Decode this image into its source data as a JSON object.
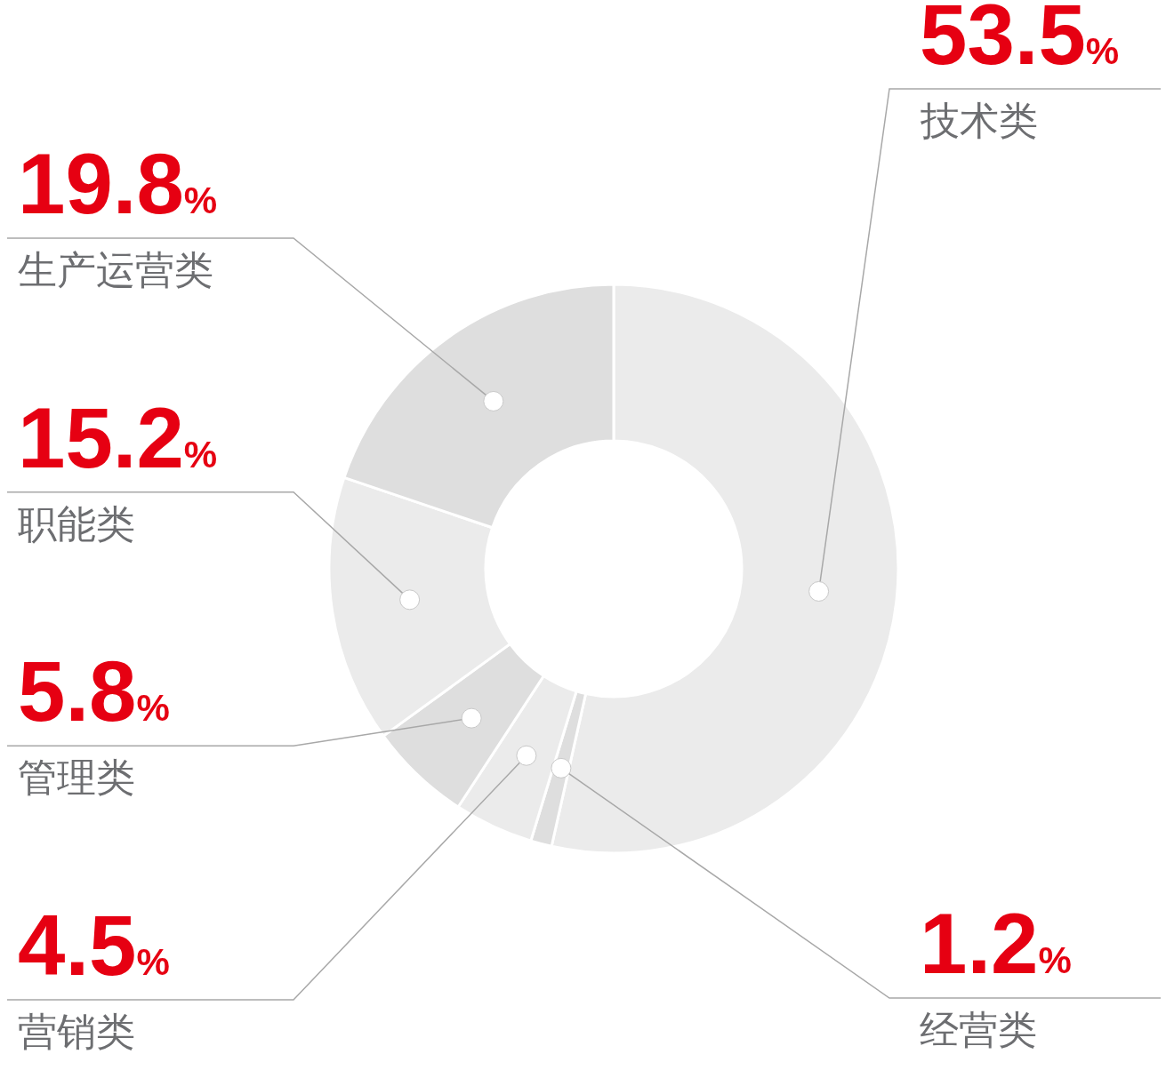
{
  "chart_data": {
    "type": "donut",
    "categories": [
      "技术类",
      "经营类",
      "营销类",
      "管理类",
      "职能类",
      "生产运营类"
    ],
    "values": [
      53.5,
      1.2,
      4.5,
      5.8,
      15.2,
      19.8
    ],
    "colors": [
      "#ebebeb",
      "#dedede",
      "#ebebeb",
      "#dedede",
      "#ebebeb",
      "#dedede"
    ],
    "value_labels": [
      "53.5%",
      "1.2%",
      "4.5%",
      "5.8%",
      "15.2%",
      "19.8%"
    ]
  }
}
